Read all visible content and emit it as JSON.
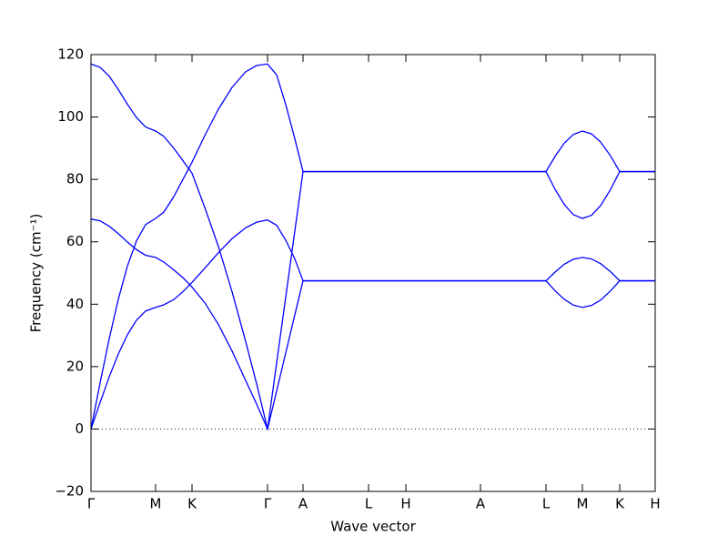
{
  "chart_data": {
    "type": "line",
    "xlabel": "Wave vector",
    "ylabel": "Frequency (cm⁻¹)",
    "xlim": [
      0,
      6.2
    ],
    "ylim": [
      -20,
      120
    ],
    "xticks": [
      {
        "value": 0,
        "label": "Γ"
      },
      {
        "value": 0.71,
        "label": "M"
      },
      {
        "value": 1.11,
        "label": "K"
      },
      {
        "value": 1.94,
        "label": "Γ"
      },
      {
        "value": 2.33,
        "label": "A"
      },
      {
        "value": 3.05,
        "label": "L"
      },
      {
        "value": 3.46,
        "label": "H"
      },
      {
        "value": 4.28,
        "label": "A"
      },
      {
        "value": 5.0,
        "label": "L"
      },
      {
        "value": 5.4,
        "label": "M"
      },
      {
        "value": 5.81,
        "label": "K"
      },
      {
        "value": 6.2,
        "label": "H"
      }
    ],
    "yticks": [
      {
        "value": -20,
        "label": "−20"
      },
      0,
      20,
      40,
      60,
      80,
      100,
      120
    ],
    "hline": 0,
    "x": [
      0,
      0.1,
      0.2,
      0.3,
      0.4,
      0.5,
      0.6,
      0.71,
      0.8,
      0.91,
      1.01,
      1.11,
      1.25,
      1.4,
      1.55,
      1.7,
      1.82,
      1.94,
      2.04,
      2.14,
      2.24,
      2.33,
      5.0,
      5.1,
      5.2,
      5.3,
      5.4,
      5.5,
      5.6,
      5.71,
      5.81,
      6.2
    ],
    "series": [
      {
        "color": "#0000ff",
        "values": [
          117,
          115.9,
          113.1,
          108.8,
          104.1,
          99.8,
          96.8,
          95.5,
          93.8,
          90,
          86,
          82,
          71,
          58.5,
          44,
          28,
          14.5,
          0,
          21.2,
          42.3,
          63.5,
          82.5,
          82.5,
          87.4,
          91.6,
          94.4,
          95.5,
          94.6,
          92,
          87.5,
          82.5,
          82.5
        ]
      },
      {
        "color": "#0000ff",
        "values": [
          0,
          14.8,
          28.9,
          41.6,
          52.2,
          60.3,
          65.5,
          67.5,
          69.5,
          74.5,
          80,
          85.5,
          94,
          102.5,
          109.5,
          114.5,
          116.5,
          117,
          113.5,
          104,
          93,
          82.5,
          82.5,
          76.8,
          72,
          68.7,
          67.5,
          68.5,
          71.6,
          76.8,
          82.5,
          82.5
        ]
      },
      {
        "color": "#0000ff",
        "values": [
          67.3,
          66.7,
          65.0,
          62.6,
          59.9,
          57.5,
          55.7,
          55,
          53.5,
          51,
          48.5,
          45.5,
          40.5,
          33.5,
          25,
          15.5,
          8,
          0,
          12.2,
          24.4,
          36.6,
          47.5,
          47.5,
          50.3,
          52.8,
          54.4,
          55,
          54.5,
          53,
          50.4,
          47.5,
          47.5
        ]
      },
      {
        "color": "#0000ff",
        "values": [
          0,
          8.5,
          16.7,
          24,
          30.2,
          34.9,
          37.8,
          39,
          39.8,
          41.5,
          44,
          47,
          51.5,
          56.5,
          61,
          64.5,
          66.3,
          67,
          65.3,
          60.5,
          54.5,
          47.5,
          47.5,
          44.3,
          41.6,
          39.7,
          39,
          39.6,
          41.3,
          44.3,
          47.5,
          47.5
        ]
      }
    ]
  }
}
